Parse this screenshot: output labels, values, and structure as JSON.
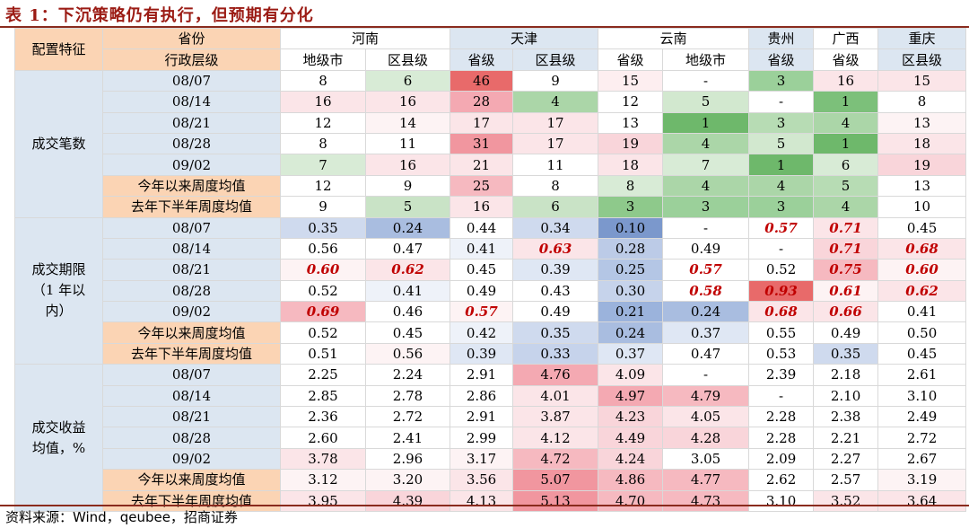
{
  "title": "表 1：下沉策略仍有执行，但预期有分化",
  "source": "资料来源：Wind，qeubee，招商证券",
  "header": {
    "feature_label": "配置特征",
    "province_label": "省份",
    "level_label": "行政层级",
    "provinces": [
      {
        "name": "河南",
        "span": 2
      },
      {
        "name": "天津",
        "span": 2
      },
      {
        "name": "云南",
        "span": 2
      },
      {
        "name": "贵州",
        "span": 1
      },
      {
        "name": "广西",
        "span": 1
      },
      {
        "name": "重庆",
        "span": 1
      }
    ],
    "levels": [
      "地级市",
      "区县级",
      "省级",
      "区县级",
      "省级",
      "地级市",
      "省级",
      "省级",
      "区县级"
    ]
  },
  "row_labels": [
    "08/07",
    "08/14",
    "08/21",
    "08/28",
    "09/02",
    "今年以来周度均值",
    "去年下半年周度均值"
  ],
  "colors": {
    "header_peach": "#fbd4b4",
    "header_blue": "#dce6f1",
    "title_red": "#9b1b14",
    "emphasis_red": "#c00000"
  },
  "groups": [
    {
      "name": "成交笔数",
      "rows": [
        {
          "values": [
            "8",
            "6",
            "46",
            "9",
            "15",
            "-",
            "3",
            "16",
            "15"
          ],
          "bg": [
            "#ffffff",
            "#d8ebd6",
            "#e86a6a",
            "#ffffff",
            "#fdeef0",
            "#ffffff",
            "#9bd09a",
            "#fbe5e8",
            "#fbe5e8"
          ],
          "em": [
            0,
            0,
            0,
            0,
            0,
            0,
            0,
            0,
            0
          ]
        },
        {
          "values": [
            "16",
            "16",
            "28",
            "4",
            "12",
            "5",
            "-",
            "1",
            "8"
          ],
          "bg": [
            "#fbe5e8",
            "#fbe5e8",
            "#f4a9b2",
            "#abd6a8",
            "#ffffff",
            "#d2e8cf",
            "#ffffff",
            "#7cc07a",
            "#ffffff"
          ],
          "em": [
            0,
            0,
            0,
            0,
            0,
            0,
            0,
            0,
            0
          ]
        },
        {
          "values": [
            "12",
            "14",
            "17",
            "17",
            "13",
            "1",
            "3",
            "4",
            "13"
          ],
          "bg": [
            "#ffffff",
            "#fdf3f4",
            "#fbe5e8",
            "#fbe5e8",
            "#ffffff",
            "#6eb86b",
            "#b7dcb4",
            "#abd6a8",
            "#fdf3f4"
          ],
          "em": [
            0,
            0,
            0,
            0,
            0,
            0,
            0,
            0,
            0
          ]
        },
        {
          "values": [
            "8",
            "11",
            "31",
            "17",
            "19",
            "4",
            "5",
            "1",
            "18"
          ],
          "bg": [
            "#ffffff",
            "#ffffff",
            "#f1969f",
            "#fbe5e8",
            "#f9d5da",
            "#abd6a8",
            "#d2e8cf",
            "#6eb86b",
            "#fbe5e8"
          ],
          "em": [
            0,
            0,
            0,
            0,
            0,
            0,
            0,
            0,
            0
          ]
        },
        {
          "values": [
            "7",
            "16",
            "21",
            "11",
            "18",
            "7",
            "1",
            "6",
            "19"
          ],
          "bg": [
            "#d8ebd6",
            "#fbe5e8",
            "#fbe5e8",
            "#ffffff",
            "#fbe5e8",
            "#d8ebd6",
            "#6eb86b",
            "#d8ebd6",
            "#f9d5da"
          ],
          "em": [
            0,
            0,
            0,
            0,
            0,
            0,
            0,
            0,
            0
          ]
        },
        {
          "values": [
            "12",
            "9",
            "25",
            "8",
            "8",
            "4",
            "4",
            "5",
            "13"
          ],
          "bg": [
            "#ffffff",
            "#ffffff",
            "#f6b9c0",
            "#ffffff",
            "#d8ebd6",
            "#abd6a8",
            "#abd6a8",
            "#b7dcb4",
            "#ffffff"
          ],
          "em": [
            0,
            0,
            0,
            0,
            0,
            0,
            0,
            0,
            0
          ]
        },
        {
          "values": [
            "9",
            "5",
            "16",
            "6",
            "3",
            "3",
            "3",
            "4",
            "10"
          ],
          "bg": [
            "#ffffff",
            "#c9e3c6",
            "#fbe5e8",
            "#c9e3c6",
            "#8ec98b",
            "#9bd09a",
            "#9bd09a",
            "#abd6a8",
            "#ffffff"
          ],
          "em": [
            0,
            0,
            0,
            0,
            0,
            0,
            0,
            0,
            0
          ]
        }
      ]
    },
    {
      "name": "成交期限（1 年以内）",
      "name_lines": [
        "成交期限",
        "（1 年以",
        "内）"
      ],
      "rows": [
        {
          "values": [
            "0.35",
            "0.24",
            "0.44",
            "0.34",
            "0.10",
            "-",
            "0.57",
            "0.71",
            "0.45"
          ],
          "bg": [
            "#cfdaee",
            "#a9bde0",
            "#ffffff",
            "#cfdaee",
            "#7b98cc",
            "#ffffff",
            "#ffffff",
            "#fbe5e8",
            "#ffffff"
          ],
          "em": [
            0,
            0,
            0,
            0,
            0,
            0,
            1,
            1,
            0
          ]
        },
        {
          "values": [
            "0.56",
            "0.47",
            "0.41",
            "0.63",
            "0.28",
            "0.49",
            "-",
            "0.71",
            "0.68"
          ],
          "bg": [
            "#ffffff",
            "#ffffff",
            "#eef2f9",
            "#fbe5e8",
            "#bccbe7",
            "#ffffff",
            "#ffffff",
            "#f9d5da",
            "#fbe5e8"
          ],
          "em": [
            0,
            0,
            0,
            1,
            0,
            0,
            0,
            1,
            1
          ]
        },
        {
          "values": [
            "0.60",
            "0.62",
            "0.45",
            "0.39",
            "0.25",
            "0.57",
            "0.52",
            "0.75",
            "0.60"
          ],
          "bg": [
            "#fdf3f4",
            "#fbe5e8",
            "#ffffff",
            "#dfe7f4",
            "#b4c6e5",
            "#ffffff",
            "#ffffff",
            "#f6b9c0",
            "#fdf3f4"
          ],
          "em": [
            1,
            1,
            0,
            0,
            0,
            1,
            0,
            1,
            1
          ]
        },
        {
          "values": [
            "0.52",
            "0.41",
            "0.49",
            "0.43",
            "0.30",
            "0.58",
            "0.93",
            "0.61",
            "0.62"
          ],
          "bg": [
            "#ffffff",
            "#eef2f9",
            "#ffffff",
            "#ffffff",
            "#c6d3eb",
            "#ffffff",
            "#e86a6a",
            "#fdf3f4",
            "#fbe5e8"
          ],
          "em": [
            0,
            0,
            0,
            0,
            0,
            1,
            1,
            1,
            1
          ]
        },
        {
          "values": [
            "0.69",
            "0.46",
            "0.57",
            "0.49",
            "0.21",
            "0.24",
            "0.68",
            "0.66",
            "0.41"
          ],
          "bg": [
            "#f6b9c0",
            "#ffffff",
            "#fdf3f4",
            "#ffffff",
            "#9bb3dc",
            "#a9bde0",
            "#fbe5e8",
            "#fbe5e8",
            "#ffffff"
          ],
          "em": [
            1,
            0,
            1,
            0,
            0,
            0,
            1,
            1,
            0
          ]
        },
        {
          "values": [
            "0.52",
            "0.45",
            "0.42",
            "0.35",
            "0.24",
            "0.37",
            "0.55",
            "0.49",
            "0.50"
          ],
          "bg": [
            "#ffffff",
            "#ffffff",
            "#eef2f9",
            "#cfdaee",
            "#a9bde0",
            "#dfe7f4",
            "#ffffff",
            "#ffffff",
            "#ffffff"
          ],
          "em": [
            0,
            0,
            0,
            0,
            0,
            0,
            0,
            0,
            0
          ]
        },
        {
          "values": [
            "0.51",
            "0.56",
            "0.39",
            "0.33",
            "0.37",
            "0.47",
            "0.53",
            "0.35",
            "0.45"
          ],
          "bg": [
            "#ffffff",
            "#fdf3f4",
            "#dfe7f4",
            "#c6d3eb",
            "#dfe7f4",
            "#ffffff",
            "#ffffff",
            "#cfdaee",
            "#ffffff"
          ],
          "em": [
            0,
            0,
            0,
            0,
            0,
            0,
            0,
            0,
            0
          ]
        }
      ]
    },
    {
      "name": "成交收益均值，%",
      "name_lines": [
        "成交收益",
        "均值，%"
      ],
      "rows": [
        {
          "values": [
            "2.25",
            "2.24",
            "2.91",
            "4.76",
            "4.09",
            "-",
            "2.39",
            "2.18",
            "2.61"
          ],
          "bg": [
            "#ffffff",
            "#ffffff",
            "#ffffff",
            "#f4a9b2",
            "#fbe5e8",
            "#ffffff",
            "#ffffff",
            "#ffffff",
            "#ffffff"
          ],
          "em": [
            0,
            0,
            0,
            0,
            0,
            0,
            0,
            0,
            0
          ]
        },
        {
          "values": [
            "2.85",
            "2.78",
            "2.86",
            "4.01",
            "4.97",
            "4.79",
            "-",
            "2.10",
            "3.10"
          ],
          "bg": [
            "#ffffff",
            "#ffffff",
            "#ffffff",
            "#fbe5e8",
            "#f4a9b2",
            "#f6b9c0",
            "#ffffff",
            "#ffffff",
            "#ffffff"
          ],
          "em": [
            0,
            0,
            0,
            0,
            0,
            0,
            0,
            0,
            0
          ]
        },
        {
          "values": [
            "2.36",
            "2.72",
            "2.91",
            "3.87",
            "4.23",
            "4.05",
            "2.28",
            "2.38",
            "2.49"
          ],
          "bg": [
            "#ffffff",
            "#ffffff",
            "#ffffff",
            "#fbe5e8",
            "#f9d5da",
            "#fbe5e8",
            "#ffffff",
            "#ffffff",
            "#ffffff"
          ],
          "em": [
            0,
            0,
            0,
            0,
            0,
            0,
            0,
            0,
            0
          ]
        },
        {
          "values": [
            "2.60",
            "2.41",
            "2.99",
            "4.12",
            "4.49",
            "4.28",
            "2.28",
            "2.21",
            "2.72"
          ],
          "bg": [
            "#ffffff",
            "#ffffff",
            "#ffffff",
            "#fbe5e8",
            "#f9d5da",
            "#f9d5da",
            "#ffffff",
            "#ffffff",
            "#ffffff"
          ],
          "em": [
            0,
            0,
            0,
            0,
            0,
            0,
            0,
            0,
            0
          ]
        },
        {
          "values": [
            "3.78",
            "2.96",
            "3.17",
            "4.72",
            "4.24",
            "3.05",
            "2.09",
            "2.27",
            "2.67"
          ],
          "bg": [
            "#fbe5e8",
            "#ffffff",
            "#fdf3f4",
            "#f6b9c0",
            "#f9d5da",
            "#ffffff",
            "#ffffff",
            "#ffffff",
            "#ffffff"
          ],
          "em": [
            0,
            0,
            0,
            0,
            0,
            0,
            0,
            0,
            0
          ]
        },
        {
          "values": [
            "3.12",
            "3.20",
            "3.56",
            "5.07",
            "4.86",
            "4.77",
            "2.62",
            "2.57",
            "3.19"
          ],
          "bg": [
            "#fdf3f4",
            "#fdf3f4",
            "#fbe5e8",
            "#f1969f",
            "#f6b9c0",
            "#f6b9c0",
            "#ffffff",
            "#ffffff",
            "#fdf3f4"
          ],
          "em": [
            0,
            0,
            0,
            0,
            0,
            0,
            0,
            0,
            0
          ]
        },
        {
          "values": [
            "3.95",
            "4.39",
            "4.13",
            "5.13",
            "4.70",
            "4.73",
            "3.10",
            "3.52",
            "3.64"
          ],
          "bg": [
            "#fbe5e8",
            "#f9d5da",
            "#fbe5e8",
            "#f1969f",
            "#f6b9c0",
            "#f6b9c0",
            "#ffffff",
            "#fbe5e8",
            "#fbe5e8"
          ],
          "em": [
            0,
            0,
            0,
            0,
            0,
            0,
            0,
            0,
            0
          ]
        }
      ]
    }
  ]
}
